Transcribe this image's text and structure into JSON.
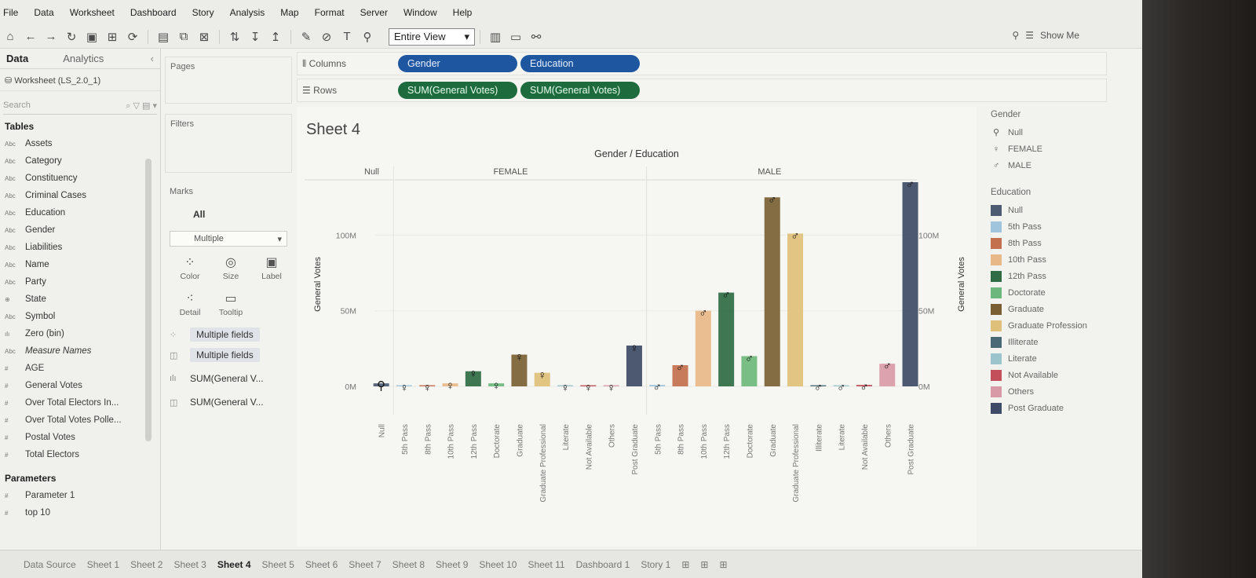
{
  "menu": [
    "File",
    "Data",
    "Worksheet",
    "Dashboard",
    "Story",
    "Analysis",
    "Map",
    "Format",
    "Server",
    "Window",
    "Help"
  ],
  "toolbar": {
    "fit": "Entire View",
    "show_me": "Show Me"
  },
  "data_pane": {
    "tab_data": "Data",
    "tab_analytics": "Analytics",
    "source": "Worksheet (LS_2.0_1)",
    "search_placeholder": "Search",
    "tables_header": "Tables",
    "fields": [
      {
        "type": "Abc",
        "name": "Assets"
      },
      {
        "type": "Abc",
        "name": "Category"
      },
      {
        "type": "Abc",
        "name": "Constituency"
      },
      {
        "type": "Abc",
        "name": "Criminal Cases"
      },
      {
        "type": "Abc",
        "name": "Education"
      },
      {
        "type": "Abc",
        "name": "Gender"
      },
      {
        "type": "Abc",
        "name": "Liabilities"
      },
      {
        "type": "Abc",
        "name": "Name"
      },
      {
        "type": "Abc",
        "name": "Party"
      },
      {
        "type": "⊕",
        "name": "State"
      },
      {
        "type": "Abc",
        "name": "Symbol"
      },
      {
        "type": "ılı",
        "name": "Zero (bin)"
      },
      {
        "type": "Abc",
        "name": "Measure Names"
      },
      {
        "type": "#",
        "name": "AGE"
      },
      {
        "type": "#",
        "name": "General Votes"
      },
      {
        "type": "#",
        "name": "Over Total Electors In..."
      },
      {
        "type": "#",
        "name": "Over Total Votes Polle..."
      },
      {
        "type": "#",
        "name": "Postal Votes"
      },
      {
        "type": "#",
        "name": "Total Electors"
      }
    ],
    "parameters_header": "Parameters",
    "parameters": [
      {
        "type": "#",
        "name": "Parameter 1"
      },
      {
        "type": "#",
        "name": "top 10"
      }
    ]
  },
  "cards": {
    "pages": "Pages",
    "filters": "Filters",
    "marks": "Marks",
    "marks_all": "All",
    "mark_type": "Multiple",
    "buttons": [
      "Color",
      "Size",
      "Label",
      "Detail",
      "Tooltip"
    ],
    "fields": [
      "Multiple fields",
      "Multiple fields",
      "SUM(General V...",
      "SUM(General V..."
    ]
  },
  "shelves": {
    "columns_label": "Columns",
    "rows_label": "Rows",
    "columns": [
      "Gender",
      "Education"
    ],
    "rows": [
      "SUM(General Votes)",
      "SUM(General Votes)"
    ]
  },
  "sheet_title": "Sheet 4",
  "chart_data": {
    "type": "bar",
    "title": "Gender / Education",
    "ylabel": "General Votes",
    "yticks": [
      "0M",
      "50M",
      "100M"
    ],
    "ylim": [
      0,
      135
    ],
    "unit": "M",
    "groups": [
      {
        "name": "Null",
        "categories": [
          "Null"
        ],
        "values": [
          2
        ]
      },
      {
        "name": "FEMALE",
        "categories": [
          "5th Pass",
          "8th Pass",
          "10th Pass",
          "12th Pass",
          "Doctorate",
          "Graduate",
          "Graduate Professional",
          "Literate",
          "Not Available",
          "Others",
          "Post Graduate"
        ],
        "values": [
          0.5,
          0.5,
          2,
          10,
          2,
          21,
          9,
          0.3,
          0.3,
          0.5,
          27
        ]
      },
      {
        "name": "MALE",
        "categories": [
          "5th Pass",
          "8th Pass",
          "10th Pass",
          "12th Pass",
          "Doctorate",
          "Graduate",
          "Graduate Professional",
          "Illiterate",
          "Literate",
          "Not Available",
          "Others",
          "Post Graduate"
        ],
        "values": [
          1,
          14,
          50,
          62,
          20,
          125,
          101,
          0.5,
          0.5,
          1,
          15,
          135
        ]
      }
    ],
    "colors": {
      "Null": "#4c5a72",
      "5th Pass": "#9fc4dc",
      "8th Pass": "#c2704e",
      "10th Pass": "#e8b888",
      "12th Pass": "#2f6b44",
      "Doctorate": "#6cb87c",
      "Graduate": "#7a5f34",
      "Graduate Professional": "#dfc07a",
      "Illiterate": "#4a6a78",
      "Literate": "#9cc4cc",
      "Not Available": "#c24f5a",
      "Others": "#d99aa8",
      "Post Graduate": "#3e4a66"
    }
  },
  "legend": {
    "gender_title": "Gender",
    "gender_items": [
      "Null",
      "FEMALE",
      "MALE"
    ],
    "education_title": "Education",
    "education_items": [
      "Null",
      "5th Pass",
      "8th Pass",
      "10th Pass",
      "12th Pass",
      "Doctorate",
      "Graduate",
      "Graduate Profession",
      "Illiterate",
      "Literate",
      "Not Available",
      "Others",
      "Post Graduate"
    ],
    "education_colors": [
      "#4c5a72",
      "#9fc4dc",
      "#c2704e",
      "#e8b888",
      "#2f6b44",
      "#6cb87c",
      "#7a5f34",
      "#dfc07a",
      "#4a6a78",
      "#9cc4cc",
      "#c24f5a",
      "#d99aa8",
      "#3e4a66"
    ]
  },
  "tabs": [
    "Data Source",
    "Sheet 1",
    "Sheet 2",
    "Sheet 3",
    "Sheet 4",
    "Sheet 5",
    "Sheet 6",
    "Sheet 7",
    "Sheet 8",
    "Sheet 9",
    "Sheet 10",
    "Sheet 11",
    "Dashboard 1",
    "Story 1"
  ],
  "active_tab": "Sheet 4"
}
